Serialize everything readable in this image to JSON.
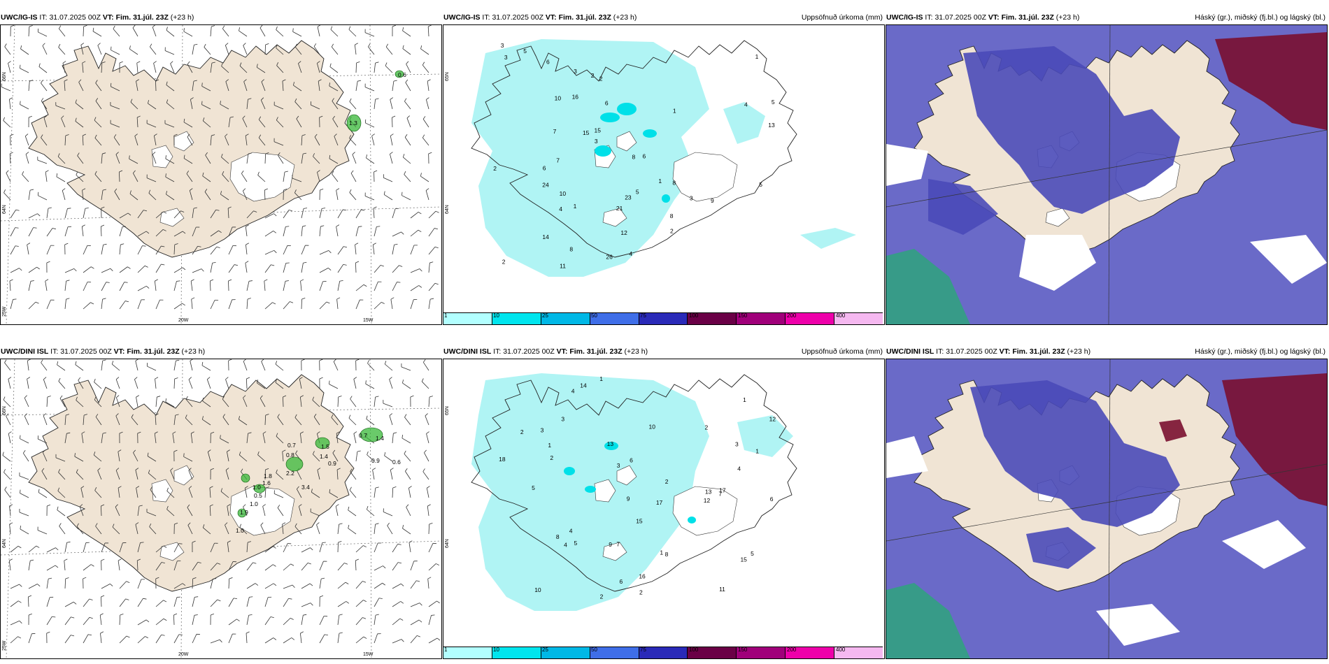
{
  "panels": [
    {
      "id": "p1",
      "model": "UWC/IG-IS",
      "it_label": "IT:",
      "it_value": "31.07.2025 00Z",
      "vt_label": "VT: Fim. 31.júl. 23Z",
      "offset": "(+23 h)",
      "title_right": "",
      "type": "wind",
      "values": [
        "0.6",
        "1.3"
      ],
      "lat_labels": [
        "66N",
        "64N"
      ],
      "lon_labels": [
        "25W",
        "20W",
        "15W"
      ]
    },
    {
      "id": "p2",
      "model": "UWC/IG-IS",
      "it_label": "IT:",
      "it_value": "31.07.2025 00Z",
      "vt_label": "VT: Fim. 31.júl. 23Z",
      "offset": "(+23 h)",
      "title_right": "Uppsöfnuð úrkoma (mm)",
      "type": "precip",
      "values": [
        "3",
        "3",
        "2",
        "1",
        "5",
        "8",
        "2",
        "1",
        "2",
        "3",
        "4",
        "6",
        "11",
        "24",
        "23",
        "15",
        "21",
        "14",
        "16",
        "15",
        "13",
        "12",
        "8",
        "7",
        "6",
        "5",
        "10",
        "9",
        "26",
        "2",
        "1",
        "3",
        "4",
        "5",
        "8",
        "7",
        "6",
        "3",
        "2",
        "1",
        "10",
        "4",
        "8",
        "6",
        "5"
      ],
      "lat_labels": [
        "65N",
        "64N"
      ],
      "lon_labels": []
    },
    {
      "id": "p3",
      "model": "UWC/IG-IS",
      "it_label": "IT:",
      "it_value": "31.07.2025 00Z",
      "vt_label": "VT: Fim. 31.júl. 23Z",
      "offset": "(+23 h)",
      "title_right": "Háský (gr.), miðský (fj.bl.) og lágský (bl.)",
      "type": "cloud"
    },
    {
      "id": "p4",
      "model": "UWC/DINI ISL",
      "it_label": "IT:",
      "it_value": "31.07.2025 00Z",
      "vt_label": "VT: Fim. 31.júl. 23Z",
      "offset": "(+23 h)",
      "title_right": "",
      "type": "wind",
      "values": [
        "0.7",
        "1.4",
        "1.0",
        "0.9",
        "0.6",
        "0.7",
        "0.8",
        "1.4",
        "1.5",
        "0.9",
        "1.8",
        "1.6",
        "2.2",
        "0.5",
        "3.4",
        "1.0",
        "1.9",
        "1.0"
      ],
      "lat_labels": [
        "66N",
        "64N"
      ],
      "lon_labels": [
        "25W",
        "20W",
        "15W"
      ]
    },
    {
      "id": "p5",
      "model": "UWC/DINI ISL",
      "it_label": "IT:",
      "it_value": "31.07.2025 00Z",
      "vt_label": "VT: Fim. 31.júl. 23Z",
      "offset": "(+23 h)",
      "title_right": "Uppsöfnuð úrkoma (mm)",
      "type": "precip",
      "values": [
        "1",
        "2",
        "3",
        "4",
        "5",
        "10",
        "18",
        "17",
        "15",
        "12",
        "14",
        "13",
        "11",
        "17",
        "15",
        "16",
        "13",
        "9",
        "8",
        "7",
        "6",
        "4",
        "3",
        "2",
        "1",
        "10",
        "12",
        "8",
        "6",
        "5",
        "2",
        "1",
        "3",
        "4",
        "7",
        "9",
        "5",
        "6",
        "2",
        "1",
        "3",
        "4",
        "2",
        "1",
        "2"
      ],
      "lat_labels": [
        "65N",
        "64N"
      ],
      "lon_labels": []
    },
    {
      "id": "p6",
      "model": "UWC/DINI ISL",
      "it_label": "IT:",
      "it_value": "31.07.2025 00Z",
      "vt_label": "VT: Fim. 31.júl. 23Z",
      "offset": "(+23 h)",
      "title_right": "Háský (gr.), miðský (fj.bl.) og lágský (bl.)",
      "type": "cloud"
    }
  ],
  "colorbar": {
    "colors": [
      "#b2ffff",
      "#00e5ee",
      "#00b8e6",
      "#3f6ee8",
      "#2a2ab8",
      "#6a0046",
      "#a0007a",
      "#ee00aa",
      "#f5b8f0"
    ],
    "labels": [
      "1",
      "10",
      "25",
      "50",
      "75",
      "100",
      "150",
      "200",
      "400"
    ]
  },
  "colors": {
    "land": "#f0e4d4",
    "precip": "#b0f4f4",
    "precip_heavy": "#00e0e8",
    "high_cloud": "#7a1030",
    "mid_cloud": "#4a4ab8",
    "low_cloud": "#6a6ac8",
    "green": "#2a9a2a"
  }
}
